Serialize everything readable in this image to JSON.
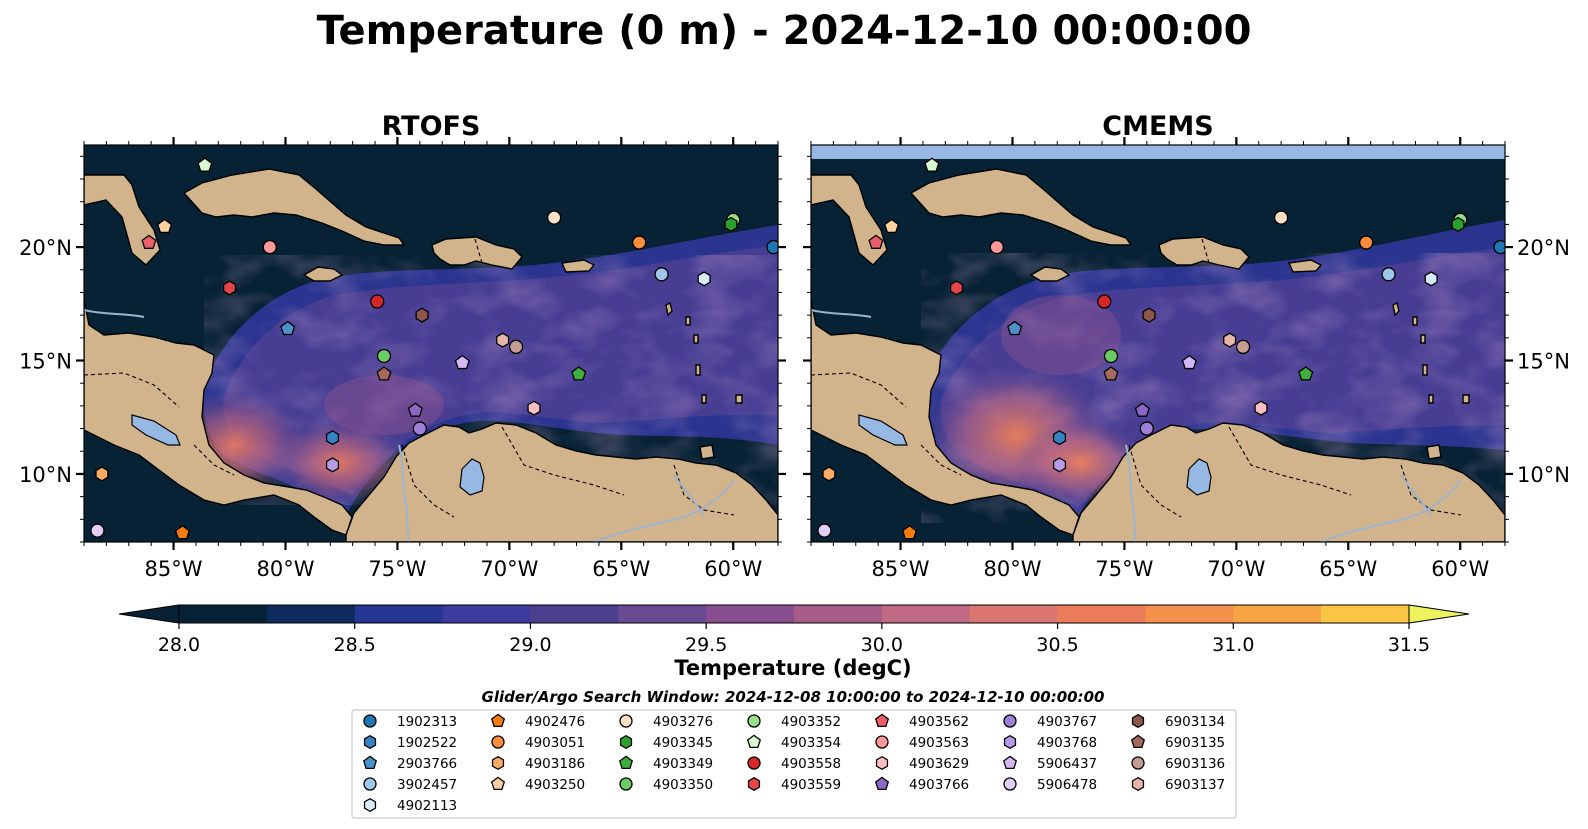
{
  "figure": {
    "title": "Temperature (0 m) - 2024-12-10 00:00:00",
    "search_window": "Glider/Argo Search Window: 2024-12-08 10:00:00 to 2024-12-10 00:00:00"
  },
  "map_extent": {
    "lon": [
      -89,
      -58
    ],
    "lat": [
      7,
      24.5
    ]
  },
  "panels": [
    {
      "id": "rtofs",
      "title": "RTOFS"
    },
    {
      "id": "cmems",
      "title": "CMEMS"
    }
  ],
  "lon_ticks": [
    {
      "value": -85,
      "label": "85°W"
    },
    {
      "value": -80,
      "label": "80°W"
    },
    {
      "value": -75,
      "label": "75°W"
    },
    {
      "value": -70,
      "label": "70°W"
    },
    {
      "value": -65,
      "label": "65°W"
    },
    {
      "value": -60,
      "label": "60°W"
    }
  ],
  "lat_ticks": [
    {
      "value": 20,
      "label": "20°N"
    },
    {
      "value": 15,
      "label": "15°N"
    },
    {
      "value": 10,
      "label": "10°N"
    }
  ],
  "colorbar": {
    "label": "Temperature (degC)",
    "range": [
      28.0,
      31.5
    ],
    "step": 0.25,
    "extend": "both",
    "ticks": [
      {
        "value": 28.0,
        "label": "28.0"
      },
      {
        "value": 28.5,
        "label": "28.5"
      },
      {
        "value": 29.0,
        "label": "29.0"
      },
      {
        "value": 29.5,
        "label": "29.5"
      },
      {
        "value": 30.0,
        "label": "30.0"
      },
      {
        "value": 30.5,
        "label": "30.5"
      },
      {
        "value": 31.0,
        "label": "31.0"
      },
      {
        "value": 31.5,
        "label": "31.5"
      }
    ],
    "colors": [
      "#072235",
      "#0e2b5e",
      "#253694",
      "#3d3a9e",
      "#4d3f8f",
      "#6a4b93",
      "#884f90",
      "#a75b88",
      "#c06983",
      "#da746f",
      "#ea7c5a",
      "#f28f4a",
      "#f6a542",
      "#f9c644",
      "#eef35d"
    ]
  },
  "colors": {
    "ocean": "#072235",
    "land": "#d2b48c",
    "lake": "#97b8e2",
    "river": "#9eb3cf",
    "cmems_nodata": "#97b8e2"
  },
  "legend": {
    "columns": [
      [
        {
          "id": "1902313",
          "marker": "circle",
          "color": "#1f77b4"
        },
        {
          "id": "1902522",
          "marker": "hexagon",
          "color": "#3583c4"
        },
        {
          "id": "2903766",
          "marker": "pentagon",
          "color": "#4a92c9"
        },
        {
          "id": "3902457",
          "marker": "circle",
          "color": "#9ec6e8"
        },
        {
          "id": "4902113",
          "marker": "hexagon",
          "color": "#d6ebfb"
        }
      ],
      [
        {
          "id": "4902476",
          "marker": "pentagon",
          "color": "#f57c0d"
        },
        {
          "id": "4903051",
          "marker": "circle",
          "color": "#fd8d3c"
        },
        {
          "id": "4903186",
          "marker": "hexagon",
          "color": "#fdaa65"
        },
        {
          "id": "4903250",
          "marker": "pentagon",
          "color": "#fdd0a2"
        }
      ],
      [
        {
          "id": "4903276",
          "marker": "circle",
          "color": "#fde0c5"
        },
        {
          "id": "4903345",
          "marker": "hexagon",
          "color": "#2ca02c"
        },
        {
          "id": "4903349",
          "marker": "pentagon",
          "color": "#3eae3e"
        },
        {
          "id": "4903350",
          "marker": "circle",
          "color": "#6acc64"
        }
      ],
      [
        {
          "id": "4903352",
          "marker": "circle",
          "color": "#98df8a"
        },
        {
          "id": "4903354",
          "marker": "pentagon",
          "color": "#d8f8cf"
        },
        {
          "id": "4903558",
          "marker": "circle",
          "color": "#d62728"
        },
        {
          "id": "4903559",
          "marker": "hexagon",
          "color": "#e4454a"
        }
      ],
      [
        {
          "id": "4903562",
          "marker": "pentagon",
          "color": "#ed5f68"
        },
        {
          "id": "4903563",
          "marker": "circle",
          "color": "#ff9896"
        },
        {
          "id": "4903629",
          "marker": "hexagon",
          "color": "#ffbfc4"
        },
        {
          "id": "4903766",
          "marker": "pentagon",
          "color": "#8c68c4"
        }
      ],
      [
        {
          "id": "4903767",
          "marker": "circle",
          "color": "#a07fd6"
        },
        {
          "id": "4903768",
          "marker": "hexagon",
          "color": "#b79bea"
        },
        {
          "id": "5906437",
          "marker": "pentagon",
          "color": "#d4b8f5"
        },
        {
          "id": "5906478",
          "marker": "circle",
          "color": "#e3cef7"
        }
      ],
      [
        {
          "id": "6903134",
          "marker": "hexagon",
          "color": "#8c564b"
        },
        {
          "id": "6903135",
          "marker": "pentagon",
          "color": "#a56a5c"
        },
        {
          "id": "6903136",
          "marker": "circle",
          "color": "#c49c94"
        },
        {
          "id": "6903137",
          "marker": "hexagon",
          "color": "#e7b6a8"
        }
      ]
    ]
  },
  "floats": [
    {
      "id": "1902313",
      "lon": -58.2,
      "lat": 20.0
    },
    {
      "id": "4903352",
      "lon": -60.0,
      "lat": 21.2
    },
    {
      "id": "4903345",
      "lon": -60.1,
      "lat": 21.0
    },
    {
      "id": "4903051",
      "lon": -64.2,
      "lat": 20.2
    },
    {
      "id": "4903276",
      "lon": -68.0,
      "lat": 21.3
    },
    {
      "id": "3902457",
      "lon": -63.2,
      "lat": 18.8
    },
    {
      "id": "4902113",
      "lon": -61.3,
      "lat": 18.6
    },
    {
      "id": "4903563",
      "lon": -80.7,
      "lat": 20.0
    },
    {
      "id": "4903562",
      "lon": -86.1,
      "lat": 20.2
    },
    {
      "id": "4903250",
      "lon": -85.4,
      "lat": 20.9
    },
    {
      "id": "4903354",
      "lon": -83.6,
      "lat": 23.6
    },
    {
      "id": "4903559",
      "lon": -82.5,
      "lat": 18.2
    },
    {
      "id": "4903558",
      "lon": -75.9,
      "lat": 17.6
    },
    {
      "id": "6903134",
      "lon": -73.9,
      "lat": 17.0
    },
    {
      "id": "2903766",
      "lon": -79.9,
      "lat": 16.4
    },
    {
      "id": "4903350",
      "lon": -75.6,
      "lat": 15.2
    },
    {
      "id": "6903135",
      "lon": -75.6,
      "lat": 14.4
    },
    {
      "id": "6903137",
      "lon": -70.3,
      "lat": 15.9
    },
    {
      "id": "6903136",
      "lon": -69.7,
      "lat": 15.6
    },
    {
      "id": "5906437",
      "lon": -72.1,
      "lat": 14.9
    },
    {
      "id": "4903349",
      "lon": -66.9,
      "lat": 14.4
    },
    {
      "id": "4903766",
      "lon": -74.2,
      "lat": 12.8
    },
    {
      "id": "4903767",
      "lon": -74.0,
      "lat": 12.0
    },
    {
      "id": "4903629",
      "lon": -68.9,
      "lat": 12.9
    },
    {
      "id": "1902522",
      "lon": -77.9,
      "lat": 11.6
    },
    {
      "id": "4903768",
      "lon": -77.9,
      "lat": 10.4
    },
    {
      "id": "4903186",
      "lon": -88.2,
      "lat": 10.0
    },
    {
      "id": "5906478",
      "lon": -88.4,
      "lat": 7.5
    },
    {
      "id": "4902476",
      "lon": -84.6,
      "lat": 7.4
    }
  ]
}
